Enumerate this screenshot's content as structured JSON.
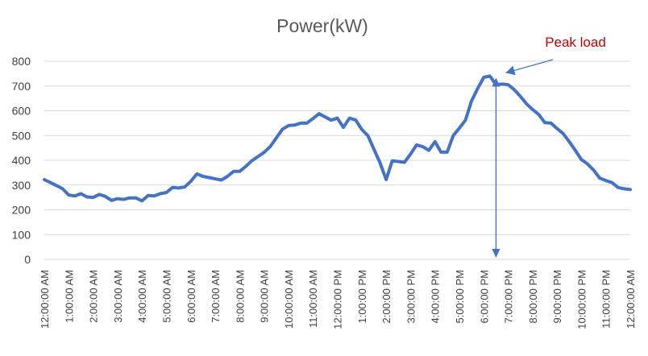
{
  "chart_data": {
    "type": "line",
    "title": "Power(kW)",
    "xlabel": "",
    "ylabel": "",
    "ylim": [
      0,
      800
    ],
    "yticks": [
      0,
      100,
      200,
      300,
      400,
      500,
      600,
      700,
      800
    ],
    "grid": true,
    "line_color": "#4472c4",
    "x_tick_labels": [
      "12:00:00 AM",
      "1:00:00 AM",
      "2:00:00 AM",
      "3:00:00 AM",
      "4:00:00 AM",
      "5:00:00 AM",
      "6:00:00 AM",
      "7:00:00 AM",
      "8:00:00 AM",
      "9:00:00 AM",
      "10:00:00 AM",
      "11:00:00 AM",
      "12:00:00 PM",
      "1:00:00 PM",
      "2:00:00 PM",
      "3:00:00 PM",
      "4:00:00 PM",
      "5:00:00 PM",
      "6:00:00 PM",
      "7:00:00 PM",
      "8:00:00 PM",
      "9:00:00 PM",
      "10:00:00 PM",
      "11:00:00 PM",
      "12:00:00 AM"
    ],
    "x_hours": [
      0,
      0.25,
      0.5,
      0.75,
      1,
      1.25,
      1.5,
      1.75,
      2,
      2.25,
      2.5,
      2.75,
      3,
      3.25,
      3.5,
      3.75,
      4,
      4.25,
      4.5,
      4.75,
      5,
      5.25,
      5.5,
      5.75,
      6,
      6.25,
      6.5,
      6.75,
      7,
      7.25,
      7.5,
      7.75,
      8,
      8.25,
      8.5,
      8.75,
      9,
      9.25,
      9.5,
      9.75,
      10,
      10.25,
      10.5,
      10.75,
      11,
      11.25,
      11.5,
      11.75,
      12,
      12.25,
      12.5,
      12.75,
      13,
      13.25,
      13.5,
      13.75,
      14,
      14.25,
      14.5,
      14.75,
      15,
      15.25,
      15.5,
      15.75,
      16,
      16.25,
      16.5,
      16.75,
      17,
      17.25,
      17.5,
      17.75,
      18,
      18.25,
      18.5,
      18.75,
      19,
      19.25,
      19.5,
      19.75,
      20,
      20.25,
      20.5,
      20.75,
      21,
      21.25,
      21.5,
      21.75,
      22,
      22.25,
      22.5,
      22.75,
      23,
      23.25,
      23.5,
      23.75,
      24
    ],
    "values": [
      322,
      310,
      298,
      285,
      260,
      256,
      265,
      252,
      250,
      262,
      254,
      238,
      245,
      242,
      248,
      248,
      236,
      258,
      256,
      265,
      270,
      290,
      288,
      292,
      315,
      345,
      335,
      330,
      325,
      320,
      335,
      355,
      355,
      375,
      398,
      415,
      432,
      455,
      490,
      525,
      540,
      542,
      550,
      550,
      568,
      588,
      575,
      562,
      570,
      533,
      570,
      563,
      525,
      500,
      445,
      390,
      322,
      398,
      395,
      392,
      425,
      462,
      455,
      440,
      475,
      433,
      433,
      500,
      530,
      562,
      640,
      690,
      735,
      740,
      705,
      708,
      705,
      685,
      658,
      628,
      605,
      585,
      552,
      550,
      528,
      508,
      475,
      440,
      403,
      385,
      360,
      328,
      318,
      310,
      290,
      285,
      282
    ],
    "annotation": {
      "text": "Peak load",
      "x_hours": 18.5,
      "value": 740
    }
  }
}
